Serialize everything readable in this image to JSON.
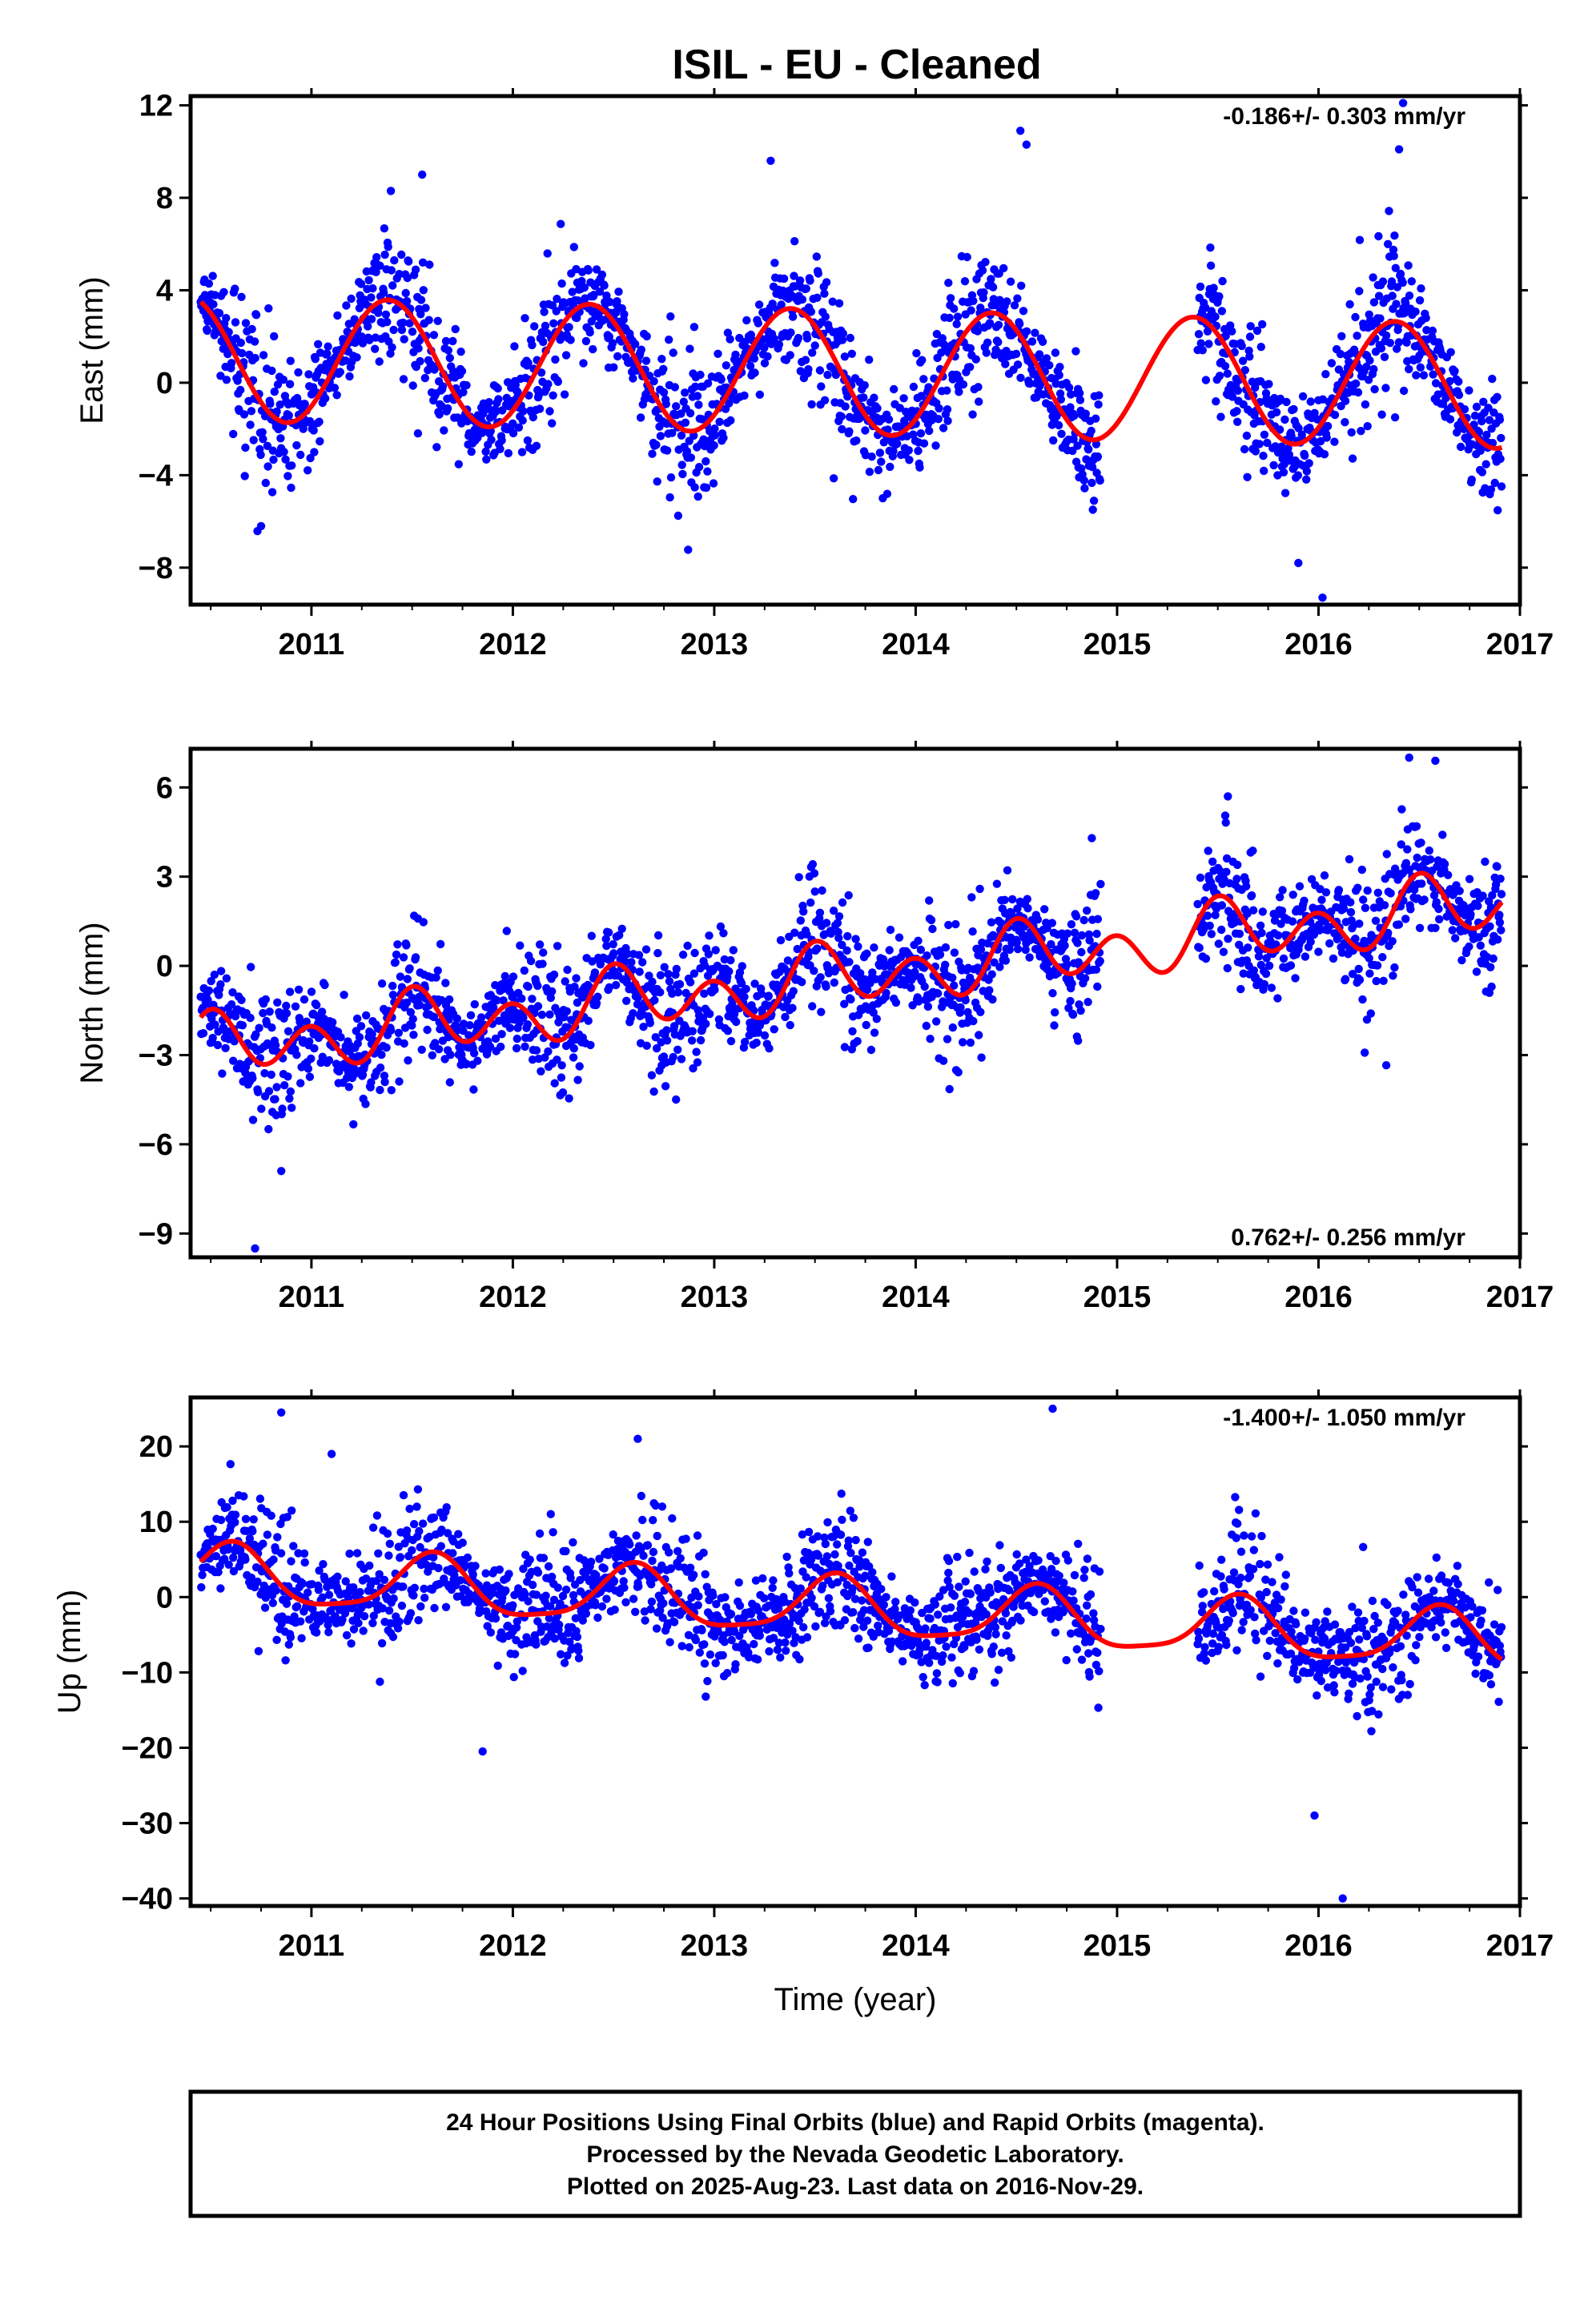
{
  "title": "ISIL  - EU - Cleaned",
  "colors": {
    "final_orbits": "#0000ff",
    "fit": "#ff0000",
    "frame": "#000000"
  },
  "footer": {
    "line1": "24 Hour Positions Using Final Orbits (blue) and Rapid Orbits (magenta).",
    "line2": "Processed by the Nevada Geodetic Laboratory.",
    "line3": "Plotted on 2025-Aug-23. Last data on 2016-Nov-29."
  },
  "chart_data": [
    {
      "type": "scatter",
      "component": "east",
      "ylabel": "East (mm)",
      "xlabel": "",
      "xlim": [
        2010.4,
        2017.0
      ],
      "ylim": [
        -9.6,
        12.4
      ],
      "xticks": [
        2011,
        2012,
        2013,
        2014,
        2015,
        2016,
        2017
      ],
      "yticks": [
        -8,
        -4,
        0,
        4,
        8,
        12
      ],
      "ytick_labels": [
        "−8",
        "−4",
        "0",
        "4",
        "8",
        "12"
      ],
      "rate_label": "-0.186+/- 0.303 mm/yr",
      "rate_position": "top-right",
      "data_range": [
        2010.45,
        2016.91
      ],
      "gap": [
        2014.92,
        2015.4
      ],
      "model": {
        "offset": 0.45,
        "trend": -0.186,
        "annual_amp": 2.7,
        "annual_phase_peak": 0.38,
        "semiannual_amp": 0.0,
        "semiannual_phase_peak": 0.0,
        "t0": 2013.7
      },
      "noise_sd": 1.5,
      "outliers": [
        [
          2010.75,
          -6.2
        ],
        [
          2013.28,
          9.6
        ],
        [
          2014.52,
          10.9
        ],
        [
          2014.55,
          10.3
        ],
        [
          2015.9,
          -7.8
        ],
        [
          2016.42,
          12.1
        ],
        [
          2016.4,
          10.1
        ],
        [
          2016.02,
          -9.3
        ],
        [
          2011.55,
          9.0
        ]
      ]
    },
    {
      "type": "scatter",
      "component": "north",
      "ylabel": "North (mm)",
      "xlabel": "",
      "xlim": [
        2010.4,
        2017.0
      ],
      "ylim": [
        -9.8,
        7.3
      ],
      "xticks": [
        2011,
        2012,
        2013,
        2014,
        2015,
        2016,
        2017
      ],
      "yticks": [
        -9,
        -6,
        -3,
        0,
        3,
        6
      ],
      "ytick_labels": [
        "−9",
        "−6",
        "−3",
        "0",
        "3",
        "6"
      ],
      "rate_label": "0.762+/- 0.256 mm/yr",
      "rate_position": "bottom-right",
      "data_range": [
        2010.45,
        2016.91
      ],
      "gap": [
        2014.92,
        2015.4
      ],
      "model": {
        "offset": -0.35,
        "trend": 0.762,
        "annual_amp": 0.5,
        "annual_phase_peak": 0.55,
        "semiannual_amp": 0.85,
        "semiannual_phase_peak": 0.0,
        "t0": 2013.7
      },
      "noise_sd": 1.1,
      "outliers": [
        [
          2010.72,
          -9.5
        ],
        [
          2010.85,
          -6.9
        ],
        [
          2016.45,
          7.0
        ],
        [
          2016.58,
          6.9
        ],
        [
          2015.55,
          5.7
        ]
      ]
    },
    {
      "type": "scatter",
      "component": "up",
      "ylabel": "Up (mm)",
      "xlabel": "Time (year)",
      "xlim": [
        2010.4,
        2017.0
      ],
      "ylim": [
        -41.0,
        26.5
      ],
      "xticks": [
        2011,
        2012,
        2013,
        2014,
        2015,
        2016,
        2017
      ],
      "yticks": [
        -40,
        -30,
        -20,
        -10,
        0,
        10,
        20
      ],
      "ytick_labels": [
        "−40",
        "−30",
        "−20",
        "−10",
        "0",
        "10",
        "20"
      ],
      "rate_label": "-1.400+/- 1.050 mm/yr",
      "rate_position": "top-right",
      "data_range": [
        2010.45,
        2016.91
      ],
      "gap": [
        2014.92,
        2015.4
      ],
      "model": {
        "offset": -1.6,
        "trend": -1.4,
        "annual_amp": 3.8,
        "annual_phase_peak": 0.6,
        "semiannual_amp": 0.9,
        "semiannual_phase_peak": 0.12,
        "t0": 2013.7
      },
      "noise_sd": 4.2,
      "outliers": [
        [
          2010.85,
          24.5
        ],
        [
          2014.68,
          25.0
        ],
        [
          2016.12,
          -40.0
        ],
        [
          2015.98,
          -29.0
        ],
        [
          2011.85,
          -20.5
        ],
        [
          2012.62,
          21.0
        ],
        [
          2011.1,
          19.0
        ]
      ]
    }
  ]
}
